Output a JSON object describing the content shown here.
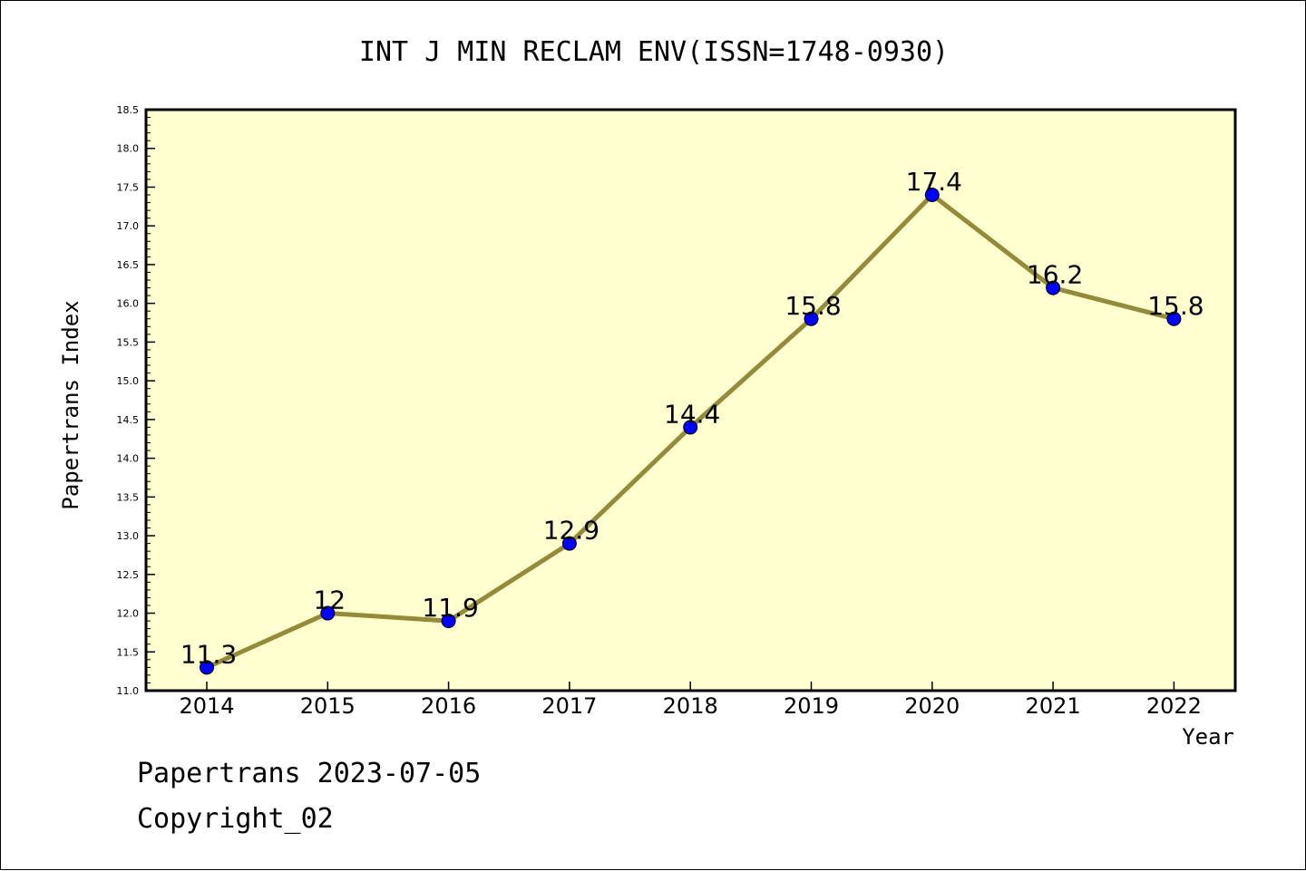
{
  "chart_data": {
    "type": "line",
    "title": "INT J MIN RECLAM ENV(ISSN=1748-0930)",
    "xlabel": "Year",
    "ylabel": "Papertrans Index",
    "categories": [
      "2014",
      "2015",
      "2016",
      "2017",
      "2018",
      "2019",
      "2020",
      "2021",
      "2022"
    ],
    "values": [
      11.3,
      12,
      11.9,
      12.9,
      14.4,
      15.8,
      17.4,
      16.2,
      15.8
    ],
    "data_labels": [
      "11.3",
      "12",
      "11.9",
      "12.9",
      "14.4",
      "15.8",
      "17.4",
      "16.2",
      "15.8"
    ],
    "ylim": [
      11.0,
      18.5
    ],
    "yticks": [
      "11.0",
      "11.5",
      "12.0",
      "12.5",
      "13.0",
      "13.5",
      "14.0",
      "14.5",
      "15.0",
      "15.5",
      "16.0",
      "16.5",
      "17.0",
      "17.5",
      "18.0",
      "18.5"
    ],
    "grid": false,
    "colors": {
      "plot_background": "#ffffd0",
      "line": "#948a3a",
      "marker": "#0000ff"
    }
  },
  "footer": {
    "source": "Papertrans 2023-07-05",
    "copyright": "Copyright_02"
  }
}
